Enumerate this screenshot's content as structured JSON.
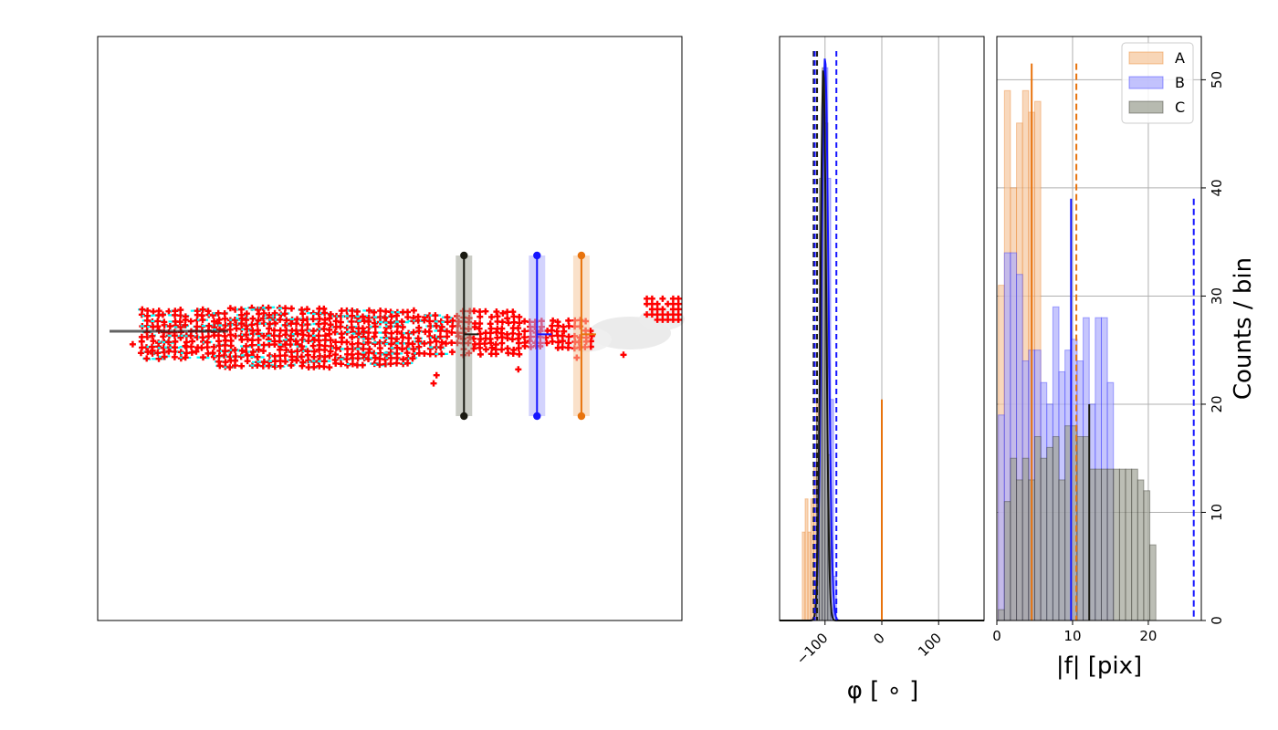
{
  "colors": {
    "A": "#e8730d",
    "B": "#1515ff",
    "C": "#1a1a12",
    "A_fill": "#f5c89f",
    "B_fill": "#aeaefc",
    "C_fill": "#9fa396",
    "red": "#ff0000",
    "cyan": "#00ffff"
  },
  "chart_data": [
    {
      "panel": "image",
      "type": "scatter",
      "title": "",
      "xlabel": "",
      "ylabel": "",
      "ylim": [
        0,
        100
      ],
      "xlim": [
        0,
        100
      ],
      "grid": false,
      "markers": [
        {
          "name": "C",
          "x": 62.7,
          "y_top": 62.5,
          "y_bottom": 35.0
        },
        {
          "name": "B",
          "x": 75.2,
          "y_top": 62.5,
          "y_bottom": 35.0
        },
        {
          "name": "A",
          "x": 82.8,
          "y_top": 62.5,
          "y_bottom": 35.0
        }
      ]
    },
    {
      "panel": "phi-histogram",
      "type": "bar",
      "xlabel": "φ [ ∘ ]",
      "ylabel": "",
      "xlim": [
        -180,
        180
      ],
      "xticks": [
        -100,
        0,
        100
      ],
      "xtick_labels": [
        "−100",
        "0",
        "100"
      ],
      "grid": true,
      "series": [
        {
          "name": "A",
          "bins": [
            -140,
            -135,
            -130,
            -125,
            -120,
            -115,
            -110,
            -105,
            -100
          ],
          "values": [
            8,
            11,
            8,
            11,
            14,
            20,
            35,
            44,
            40
          ]
        },
        {
          "name": "B",
          "bins": [
            -115,
            -110,
            -105,
            -100,
            -95,
            -90,
            -85
          ],
          "values": [
            12,
            30,
            46,
            50,
            40,
            20,
            4
          ]
        },
        {
          "name": "C",
          "bins": [
            -115,
            -110,
            -105,
            -100,
            -95
          ],
          "values": [
            18,
            40,
            50,
            45,
            15
          ]
        }
      ],
      "vlines": [
        {
          "name": "A",
          "x": 0,
          "style": "solid",
          "height": 20
        }
      ]
    },
    {
      "panel": "magnitude-histogram",
      "type": "bar",
      "xlabel": "|f| [pix]",
      "ylabel": "Counts / bin",
      "xlim": [
        0,
        27
      ],
      "ylim": [
        0,
        54
      ],
      "xticks": [
        0,
        10,
        20
      ],
      "yticks": [
        0,
        10,
        20,
        30,
        40,
        50
      ],
      "grid": true,
      "legend": "top-right",
      "bin_width": 0.8,
      "bin_start": 0.2,
      "series": [
        {
          "name": "A",
          "values": [
            31,
            49,
            40,
            46,
            49,
            47,
            48
          ]
        },
        {
          "name": "B",
          "values": [
            19,
            34,
            34,
            32,
            24,
            25,
            25,
            22,
            20,
            29,
            23,
            25,
            26,
            24,
            28,
            20,
            28,
            28,
            22
          ]
        },
        {
          "name": "C",
          "values": [
            1,
            11,
            15,
            13,
            15,
            13,
            17,
            15,
            16,
            17,
            13,
            18,
            18,
            17,
            17,
            14,
            14,
            14,
            14,
            14,
            14,
            14,
            14,
            13,
            12,
            7
          ]
        }
      ],
      "vlines": [
        {
          "name": "A",
          "x": 4.6,
          "style": "solid",
          "height": 51.5
        },
        {
          "name": "A",
          "x": 10.5,
          "style": "dashed",
          "height": 51.5
        },
        {
          "name": "B",
          "x": 9.8,
          "style": "solid",
          "height": 39
        },
        {
          "name": "B",
          "x": 26.0,
          "style": "dashed",
          "height": 39
        },
        {
          "name": "C",
          "x": 12.2,
          "style": "solid",
          "height": 20
        }
      ]
    }
  ]
}
